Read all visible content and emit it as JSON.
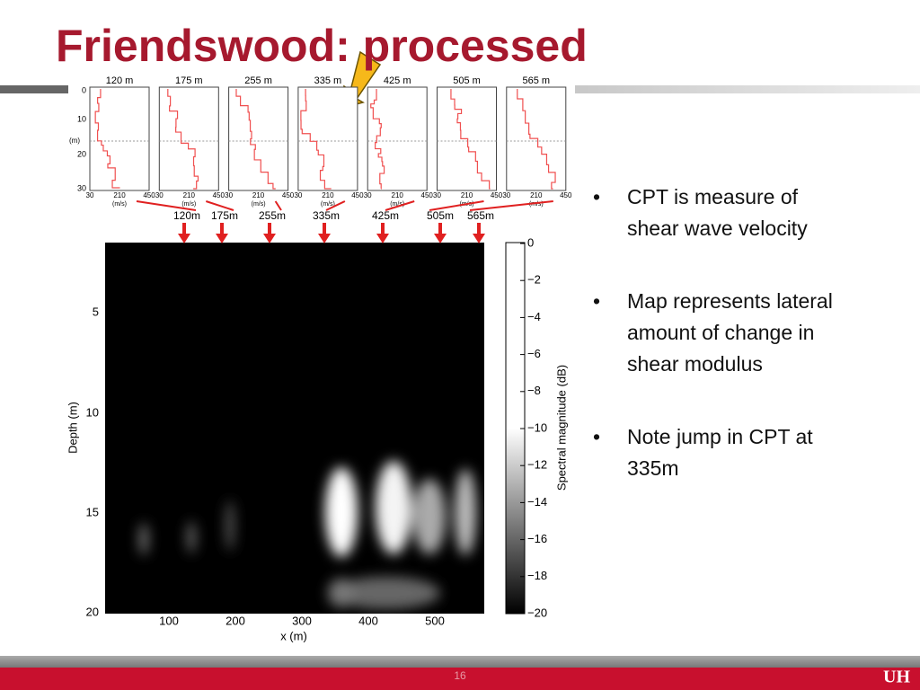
{
  "title": "Friendswood: processed",
  "cpt_panels": {
    "labels": [
      "120 m",
      "175 m",
      "255 m",
      "335 m",
      "425 m",
      "505 m",
      "565 m"
    ],
    "depth_ticks": [
      "0",
      "10",
      "20",
      "30"
    ],
    "depth_unit": "(m)",
    "velocity_ticks": [
      "30",
      "210",
      "450"
    ],
    "velocity_unit": "(m/s)"
  },
  "positions": [
    "120m",
    "175m",
    "255m",
    "335m",
    "425m",
    "505m",
    "565m"
  ],
  "heatmap": {
    "y_label": "Depth (m)",
    "y_ticks": [
      "5",
      "10",
      "15",
      "20"
    ],
    "x_label": "x (m)",
    "x_ticks": [
      "100",
      "200",
      "300",
      "400",
      "500"
    ],
    "colorbar_label": "Spectral magnitude (dB)",
    "colorbar_ticks": [
      "0",
      "−2",
      "−4",
      "−6",
      "−8",
      "−10",
      "−12",
      "−14",
      "−16",
      "−18",
      "−20"
    ]
  },
  "bullets": [
    [
      "CPT is measure of",
      "shear wave velocity"
    ],
    [
      "Map represents lateral",
      "amount of change in",
      "shear modulus"
    ],
    [
      "Note jump in CPT at",
      "335m"
    ]
  ],
  "page_number": "16",
  "logo": "UH"
}
